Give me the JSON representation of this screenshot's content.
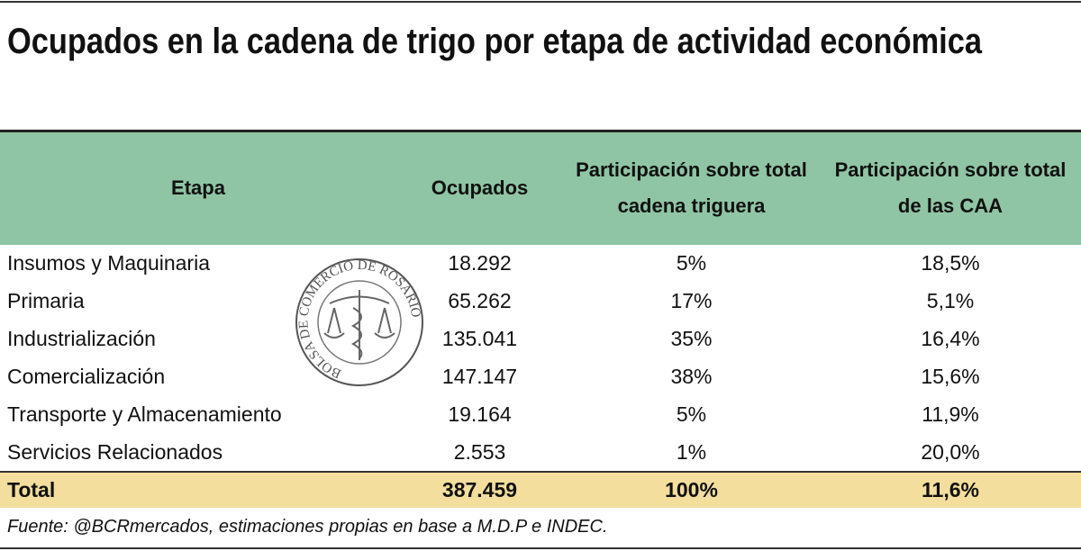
{
  "header": {
    "title": "Ocupados en la cadena de trigo por etapa de actividad económica"
  },
  "table": {
    "columns": [
      "Etapa",
      "Ocupados",
      "Participación sobre total cadena triguera",
      "Participación sobre total de las CAA"
    ],
    "rows": [
      [
        "Insumos y Maquinaria",
        "18.292",
        "5%",
        "18,5%"
      ],
      [
        "Primaria",
        "65.262",
        "17%",
        "5,1%"
      ],
      [
        "Industrialización",
        "135.041",
        "35%",
        "16,4%"
      ],
      [
        "Comercialización",
        "147.147",
        "38%",
        "15,6%"
      ],
      [
        "Transporte y Almacenamiento",
        "19.164",
        "5%",
        "11,9%"
      ],
      [
        "Servicios Relacionados",
        "2.553",
        "1%",
        "20,0%"
      ]
    ],
    "total": [
      "Total",
      "387.459",
      "100%",
      "11,6%"
    ]
  },
  "logo": {
    "text": "BOLSA DE COMERCIO DE ROSARIO"
  },
  "source": "Fuente: @BCRmercados, estimaciones propias en base a M.D.P e INDEC."
}
